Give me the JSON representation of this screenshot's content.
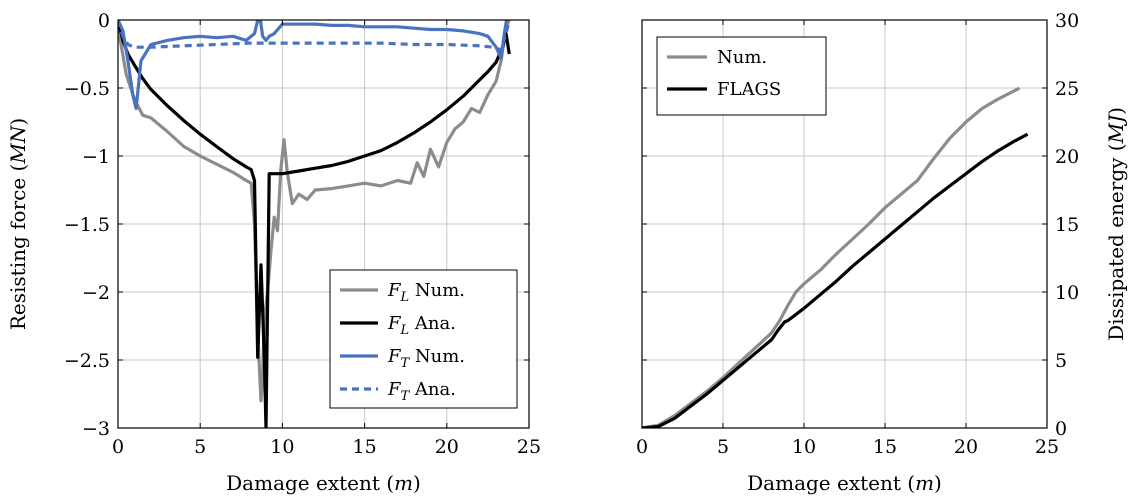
{
  "chart_data": [
    {
      "type": "line",
      "xlabel": "Damage extent (m)",
      "ylabel": "Resisting force (MN)",
      "xlim": [
        0,
        25
      ],
      "ylim": [
        -3,
        0
      ],
      "xticks": [
        0,
        5,
        10,
        15,
        20,
        25
      ],
      "yticks": [
        0,
        -0.5,
        -1,
        -1.5,
        -2,
        -2.5,
        -3
      ],
      "xtick_labels": [
        "0",
        "5",
        "10",
        "15",
        "20",
        "25"
      ],
      "ytick_labels": [
        "0",
        "−0.5",
        "−1",
        "−1.5",
        "−2",
        "−2.5",
        "−3"
      ],
      "grid": true,
      "legend_position": "bottom-right",
      "series": [
        {
          "name": "F_L Num.",
          "legend_sym": "F",
          "legend_sub": "L",
          "legend_rest": " Num.",
          "color": "#8c8c8c",
          "dash": "solid",
          "x": [
            0,
            0.5,
            1,
            1.5,
            2,
            3,
            4,
            5,
            6,
            7,
            7.8,
            8.1,
            8.3,
            8.5,
            8.7,
            8.8,
            8.9,
            9.1,
            9.3,
            9.5,
            9.7,
            9.9,
            10.1,
            10.3,
            10.6,
            11,
            11.5,
            12,
            13,
            14,
            15,
            16,
            17,
            17.8,
            18.2,
            18.6,
            19,
            19.5,
            20,
            20.5,
            21,
            21.5,
            22,
            22.5,
            23,
            23.3,
            23.6,
            23.8
          ],
          "y": [
            -0.05,
            -0.4,
            -0.58,
            -0.7,
            -0.72,
            -0.82,
            -0.93,
            -1.0,
            -1.06,
            -1.12,
            -1.18,
            -1.2,
            -1.5,
            -2.3,
            -2.8,
            -2.6,
            -2.2,
            -2.0,
            -1.7,
            -1.45,
            -1.55,
            -1.1,
            -0.88,
            -1.12,
            -1.35,
            -1.28,
            -1.32,
            -1.25,
            -1.24,
            -1.22,
            -1.2,
            -1.22,
            -1.18,
            -1.2,
            -1.05,
            -1.15,
            -0.95,
            -1.08,
            -0.9,
            -0.8,
            -0.75,
            -0.65,
            -0.68,
            -0.55,
            -0.45,
            -0.3,
            -0.05,
            0.0
          ]
        },
        {
          "name": "F_L Ana.",
          "legend_sym": "F",
          "legend_sub": "L",
          "legend_rest": " Ana.",
          "color": "#000000",
          "dash": "solid",
          "x": [
            0,
            0.3,
            0.6,
            1,
            1.5,
            2,
            3,
            4,
            5,
            6,
            7,
            7.8,
            8.1,
            8.3,
            8.5,
            8.7,
            8.9,
            9.0,
            9.2,
            10,
            11,
            12,
            13,
            14,
            15,
            16,
            17,
            18,
            19,
            20,
            21,
            22,
            22.5,
            23,
            23.4,
            23.6,
            23.8
          ],
          "y": [
            0,
            -0.15,
            -0.25,
            -0.33,
            -0.43,
            -0.51,
            -0.63,
            -0.74,
            -0.84,
            -0.93,
            -1.02,
            -1.08,
            -1.1,
            -1.18,
            -2.48,
            -1.8,
            -2.48,
            -3.0,
            -1.13,
            -1.13,
            -1.11,
            -1.09,
            -1.07,
            -1.04,
            -1.0,
            -0.96,
            -0.9,
            -0.83,
            -0.75,
            -0.66,
            -0.56,
            -0.44,
            -0.38,
            -0.31,
            -0.2,
            -0.1,
            -0.25
          ]
        },
        {
          "name": "F_T Num.",
          "legend_sym": "F",
          "legend_sub": "T",
          "legend_rest": " Num.",
          "color": "#4a72c0",
          "dash": "solid",
          "x": [
            0,
            0.3,
            0.6,
            0.9,
            1.1,
            1.4,
            2,
            3,
            4,
            5,
            6,
            7,
            7.8,
            8.3,
            8.6,
            8.8,
            9.0,
            9.2,
            9.5,
            10,
            11,
            12,
            13,
            14,
            15,
            16,
            17,
            18,
            19,
            20,
            21,
            22,
            22.5,
            23,
            23.3,
            23.5,
            23.7
          ],
          "y": [
            0,
            -0.08,
            -0.3,
            -0.55,
            -0.65,
            -0.3,
            -0.18,
            -0.15,
            -0.13,
            -0.12,
            -0.13,
            -0.12,
            -0.15,
            -0.1,
            0.05,
            -0.12,
            -0.15,
            -0.12,
            -0.1,
            -0.03,
            -0.03,
            -0.03,
            -0.04,
            -0.04,
            -0.05,
            -0.05,
            -0.05,
            -0.06,
            -0.07,
            -0.07,
            -0.08,
            -0.1,
            -0.12,
            -0.2,
            -0.28,
            -0.1,
            0.05
          ]
        },
        {
          "name": "F_T Ana.",
          "legend_sym": "F",
          "legend_sub": "T",
          "legend_rest": " Ana.",
          "color": "#4a72c0",
          "dash": "dashed",
          "x": [
            0,
            0.3,
            0.6,
            1,
            2,
            4,
            6,
            8,
            10,
            12,
            14,
            16,
            18,
            20,
            22,
            22.8,
            23.3,
            23.6,
            23.8
          ],
          "y": [
            0,
            -0.12,
            -0.18,
            -0.2,
            -0.2,
            -0.19,
            -0.18,
            -0.17,
            -0.17,
            -0.17,
            -0.17,
            -0.17,
            -0.18,
            -0.18,
            -0.19,
            -0.2,
            -0.22,
            -0.1,
            0.0
          ]
        }
      ]
    },
    {
      "type": "line",
      "xlabel": "Damage extent (m)",
      "ylabel": "Dissipated energy (MJ)",
      "xlim": [
        0,
        25
      ],
      "ylim": [
        0,
        30
      ],
      "xticks": [
        0,
        5,
        10,
        15,
        20,
        25
      ],
      "yticks": [
        0,
        5,
        10,
        15,
        20,
        25,
        30
      ],
      "xtick_labels": [
        "0",
        "5",
        "10",
        "15",
        "20",
        "25"
      ],
      "ytick_labels": [
        "0",
        "5",
        "10",
        "15",
        "20",
        "25",
        "30"
      ],
      "y_axis_side": "right",
      "grid": true,
      "legend_position": "top-left",
      "series": [
        {
          "name": "Num.",
          "color": "#8c8c8c",
          "dash": "solid",
          "x": [
            0,
            1,
            2,
            3,
            4,
            5,
            6,
            7,
            8,
            8.5,
            9,
            9.5,
            10,
            11,
            12,
            13,
            14,
            15,
            16,
            17,
            18,
            19,
            20,
            21,
            22,
            23,
            23.3
          ],
          "y": [
            0,
            0.2,
            0.9,
            1.8,
            2.7,
            3.7,
            4.8,
            5.9,
            7.0,
            7.9,
            9.0,
            10.0,
            10.6,
            11.6,
            12.8,
            13.9,
            15.0,
            16.2,
            17.2,
            18.2,
            19.8,
            21.3,
            22.5,
            23.5,
            24.2,
            24.8,
            25.0
          ]
        },
        {
          "name": "FLAGS",
          "color": "#000000",
          "dash": "solid",
          "x": [
            0,
            1,
            2,
            3,
            4,
            5,
            6,
            7,
            8,
            8.4,
            8.8,
            9,
            10,
            11,
            12,
            13,
            14,
            15,
            16,
            17,
            18,
            19,
            20,
            21,
            22,
            23,
            23.8
          ],
          "y": [
            0,
            0.1,
            0.7,
            1.6,
            2.5,
            3.5,
            4.5,
            5.5,
            6.5,
            7.2,
            7.8,
            7.9,
            8.8,
            9.8,
            10.8,
            11.9,
            12.9,
            13.9,
            14.9,
            15.9,
            16.9,
            17.8,
            18.7,
            19.6,
            20.4,
            21.1,
            21.6
          ]
        }
      ]
    }
  ]
}
